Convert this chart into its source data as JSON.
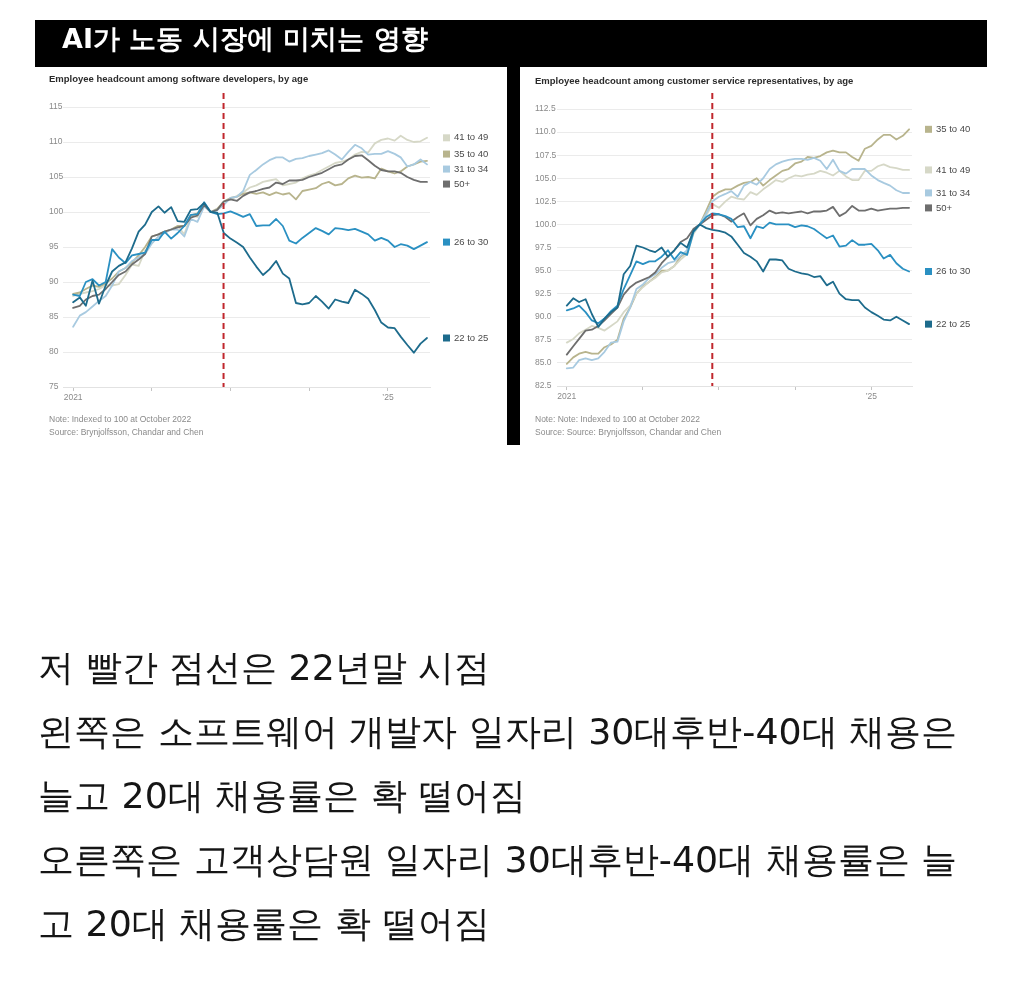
{
  "chart_data": [
    {
      "type": "other",
      "title": "AI가 노동 시장에 미치는 영향"
    },
    {
      "type": "line",
      "title": "Employee headcount among software developers, by age",
      "x": [
        "2021-01",
        "2021-02",
        "2021-03",
        "2021-04",
        "2021-05",
        "2021-06",
        "2021-07",
        "2021-08",
        "2021-09",
        "2021-10",
        "2021-11",
        "2021-12",
        "2022-01",
        "2022-02",
        "2022-03",
        "2022-04",
        "2022-05",
        "2022-06",
        "2022-07",
        "2022-08",
        "2022-09",
        "2022-10",
        "2022-11",
        "2022-12",
        "2023-01",
        "2023-02",
        "2023-03",
        "2023-04",
        "2023-05",
        "2023-06",
        "2023-07",
        "2023-08",
        "2023-09",
        "2023-10",
        "2023-11",
        "2023-12",
        "2024-01",
        "2024-02",
        "2024-03",
        "2024-04",
        "2024-05",
        "2024-06",
        "2024-07",
        "2024-08",
        "2024-09",
        "2024-10",
        "2024-11",
        "2024-12",
        "2025-01",
        "2025-02",
        "2025-03",
        "2025-04",
        "2025-05",
        "2025-06",
        "2025-07"
      ],
      "series": [
        {
          "name": "41 to 49",
          "color": "#d6d8c7",
          "values": [
            88.0,
            88.3,
            88.5,
            88.7,
            89.0,
            89.5,
            89.5,
            89.7,
            91.0,
            92.5,
            92.3,
            94.5,
            95.5,
            96.5,
            97.0,
            97.5,
            98.0,
            96.8,
            99.5,
            99.3,
            101.2,
            100,
            100.5,
            101.4,
            101.8,
            102.3,
            102.8,
            103.5,
            103.8,
            104.3,
            104.5,
            104.7,
            103.8,
            104.0,
            104.2,
            104.8,
            105.2,
            105.5,
            106.0,
            106.5,
            107.0,
            107.2,
            107.5,
            108.2,
            108.6,
            108.5,
            109.8,
            110.3,
            110.5,
            110.2,
            110.9,
            110.3,
            110.0,
            110.1,
            110.6
          ]
        },
        {
          "name": "35 to 40",
          "color": "#b8b48d",
          "values": [
            88.3,
            88.5,
            89.0,
            89.5,
            89.3,
            89.8,
            90.5,
            91.5,
            92.0,
            92.8,
            93.8,
            95.0,
            96.5,
            96.8,
            97.2,
            97.5,
            98.0,
            98.0,
            99.5,
            99.8,
            101.0,
            100,
            100.4,
            101.5,
            102.0,
            102.2,
            102.6,
            102.8,
            102.6,
            102.8,
            102.4,
            102.8,
            102.5,
            102.7,
            101.8,
            103.0,
            103.2,
            103.4,
            104.0,
            104.3,
            103.8,
            104.0,
            104.8,
            105.2,
            104.9,
            105.0,
            104.8,
            106.2,
            105.8,
            105.5,
            105.8,
            106.5,
            106.8,
            107.2,
            107.3
          ]
        },
        {
          "name": "31 to 34",
          "color": "#a8cae0",
          "values": [
            83.6,
            85.2,
            85.7,
            86.5,
            87.3,
            88.0,
            89.5,
            91.5,
            92.0,
            93.0,
            93.5,
            94.0,
            95.5,
            96.5,
            97.0,
            97.5,
            97.5,
            96.5,
            99.0,
            98.6,
            100.8,
            100,
            100.3,
            101.0,
            102.0,
            102.2,
            103.0,
            105.3,
            106.0,
            106.8,
            107.4,
            107.8,
            107.8,
            107.2,
            107.6,
            107.7,
            108.0,
            108.2,
            108.4,
            108.8,
            108.2,
            107.5,
            108.6,
            109.6,
            109.1,
            108.2,
            108.3,
            108.3,
            108.7,
            108.3,
            107.8,
            106.5,
            106.8,
            107.5,
            106.8
          ]
        },
        {
          "name": "50+",
          "color": "#6e6e6e",
          "values": [
            86.3,
            86.6,
            87.5,
            88.0,
            88.2,
            89.0,
            90.0,
            91.0,
            91.5,
            92.5,
            93.2,
            94.0,
            96.5,
            96.8,
            97.2,
            97.5,
            97.8,
            98.0,
            99.2,
            99.5,
            101.0,
            100,
            100.3,
            101.5,
            101.8,
            101.6,
            102.3,
            102.8,
            103.0,
            103.3,
            103.5,
            104.2,
            104.0,
            104.5,
            104.5,
            104.6,
            105.0,
            105.3,
            105.6,
            106.1,
            106.6,
            106.8,
            107.5,
            108.0,
            108.1,
            107.4,
            106.6,
            106.0,
            105.8,
            105.8,
            105.6,
            105.0,
            104.6,
            104.3,
            104.3
          ]
        },
        {
          "name": "26 to 30",
          "color": "#2a90c2",
          "values": [
            88.2,
            88.0,
            90.0,
            90.4,
            89.5,
            90.0,
            94.7,
            93.5,
            92.7,
            93.8,
            94.0,
            94.2,
            96.0,
            96.0,
            97.2,
            96.2,
            97.0,
            98.0,
            99.6,
            99.7,
            101.4,
            100,
            99.7,
            99.8,
            100.1,
            99.7,
            99.3,
            99.7,
            98.0,
            98.1,
            98.1,
            99.0,
            98.0,
            95.9,
            95.5,
            96.3,
            97.0,
            97.7,
            97.3,
            96.8,
            97.7,
            97.6,
            97.4,
            97.6,
            97.2,
            96.8,
            95.9,
            96.3,
            95.9,
            95.0,
            95.4,
            95.2,
            94.7,
            95.2,
            95.7
          ]
        },
        {
          "name": "22 to 25",
          "color": "#1d6b8c",
          "values": [
            87.1,
            87.8,
            86.6,
            90.2,
            86.9,
            89.5,
            91.5,
            92.3,
            92.8,
            94.8,
            97.2,
            98.2,
            100.0,
            100.8,
            99.9,
            100.7,
            98.7,
            98.6,
            100.3,
            100.4,
            101.3,
            100,
            99.9,
            97.0,
            96.2,
            95.6,
            95.0,
            93.5,
            92.2,
            91.0,
            91.8,
            93.0,
            91.2,
            90.5,
            87.0,
            86.8,
            87.0,
            88.0,
            87.2,
            86.2,
            87.5,
            87.2,
            87.0,
            88.9,
            88.3,
            87.6,
            86.0,
            84.2,
            83.5,
            83.4,
            82.2,
            81.0,
            79.9,
            81.2,
            82.0
          ]
        }
      ],
      "xlim": [
        "2020-11-15",
        "2025-07-15"
      ],
      "xticks": [
        {
          "value": "2021",
          "label": "2021"
        },
        {
          "value": "2022",
          "label": null
        },
        {
          "value": "2023",
          "label": null
        },
        {
          "value": "2024",
          "label": null
        },
        {
          "value": "2025",
          "label": "’25"
        }
      ],
      "ylim": [
        75,
        115
      ],
      "yticks": [
        75,
        80,
        85,
        90,
        95,
        100,
        105,
        110,
        115
      ],
      "grid": "y",
      "legend": "right",
      "ref_lines": [
        {
          "axis": "x",
          "value": "2022-11-30",
          "color": "#c0272d",
          "line_style": "dashed"
        }
      ],
      "annotations": [
        "Note: Indexed to 100 at October 2022",
        "Source: Brynjolfsson, Chandar and Chen"
      ]
    },
    {
      "type": "line",
      "title": "Employee headcount among customer service representatives, by age",
      "x": [
        "2021-01",
        "2021-02",
        "2021-03",
        "2021-04",
        "2021-05",
        "2021-06",
        "2021-07",
        "2021-08",
        "2021-09",
        "2021-10",
        "2021-11",
        "2021-12",
        "2022-01",
        "2022-02",
        "2022-03",
        "2022-04",
        "2022-05",
        "2022-06",
        "2022-07",
        "2022-08",
        "2022-09",
        "2022-10",
        "2022-11",
        "2022-12",
        "2023-01",
        "2023-02",
        "2023-03",
        "2023-04",
        "2023-05",
        "2023-06",
        "2023-07",
        "2023-08",
        "2023-09",
        "2023-10",
        "2023-11",
        "2023-12",
        "2024-01",
        "2024-02",
        "2024-03",
        "2024-04",
        "2024-05",
        "2024-06",
        "2024-07",
        "2024-08",
        "2024-09",
        "2024-10",
        "2024-11",
        "2024-12",
        "2025-01",
        "2025-02",
        "2025-03",
        "2025-04",
        "2025-05",
        "2025-06",
        "2025-07"
      ],
      "series": [
        {
          "name": "35 to 40",
          "color": "#b8b48d",
          "values": [
            84.9,
            85.6,
            86.0,
            86.2,
            86.0,
            86.0,
            86.7,
            87.0,
            87.5,
            89.8,
            91.0,
            92.5,
            93.3,
            93.8,
            94.3,
            95.0,
            95.0,
            95.5,
            96.5,
            97.0,
            99.5,
            100,
            101.5,
            103.0,
            103.5,
            103.8,
            103.8,
            104.2,
            104.5,
            104.6,
            105.0,
            104.2,
            104.8,
            105.3,
            105.8,
            106.0,
            106.6,
            106.8,
            107.3,
            107.2,
            107.4,
            107.8,
            108.0,
            107.8,
            107.8,
            107.3,
            106.9,
            108.2,
            108.5,
            109.2,
            109.7,
            109.7,
            109.2,
            109.6,
            110.3
          ]
        },
        {
          "name": "41 to 49",
          "color": "#d6d8c7",
          "values": [
            87.2,
            87.6,
            88.2,
            88.6,
            89.0,
            88.8,
            88.5,
            89.0,
            89.5,
            90.5,
            91.2,
            92.5,
            93.2,
            93.8,
            94.2,
            94.8,
            95.0,
            95.5,
            96.2,
            96.8,
            99.0,
            100,
            101.0,
            102.2,
            101.8,
            102.5,
            103.0,
            102.8,
            102.7,
            103.5,
            103.2,
            103.8,
            104.3,
            104.8,
            104.6,
            105.0,
            105.3,
            105.2,
            105.4,
            105.5,
            105.8,
            105.6,
            105.3,
            105.8,
            105.2,
            104.8,
            104.8,
            105.8,
            105.8,
            106.3,
            106.5,
            106.2,
            106.1,
            105.9,
            105.9
          ]
        },
        {
          "name": "31 to 34",
          "color": "#a8cae0",
          "values": [
            84.4,
            84.5,
            85.3,
            85.5,
            85.3,
            85.5,
            86.2,
            87.2,
            87.3,
            89.5,
            91.0,
            93.0,
            93.5,
            94.2,
            94.6,
            95.3,
            95.8,
            96.0,
            96.6,
            97.2,
            99.5,
            100,
            101.2,
            102.5,
            103.0,
            103.3,
            103.6,
            103.0,
            104.2,
            104.6,
            104.3,
            105.0,
            106.0,
            106.5,
            106.8,
            107.0,
            107.1,
            107.1,
            107.0,
            107.2,
            106.9,
            106.0,
            107.0,
            105.8,
            105.5,
            106.0,
            106.0,
            106.0,
            105.3,
            104.8,
            104.5,
            104.2,
            103.7,
            103.4,
            103.4
          ]
        },
        {
          "name": "50+",
          "color": "#6e6e6e",
          "values": [
            85.9,
            86.8,
            87.6,
            88.5,
            88.6,
            89.0,
            89.6,
            90.3,
            91.0,
            92.4,
            93.2,
            93.7,
            94.0,
            94.3,
            94.8,
            95.8,
            96.5,
            97.2,
            98.1,
            98.5,
            99.5,
            100,
            100.5,
            101.0,
            101.1,
            100.8,
            100.3,
            100.8,
            101.2,
            99.9,
            100.6,
            101.0,
            101.5,
            101.2,
            101.3,
            101.2,
            101.3,
            101.4,
            101.2,
            101.4,
            101.4,
            101.5,
            101.9,
            100.9,
            101.3,
            102.0,
            101.5,
            101.5,
            101.7,
            101.5,
            101.6,
            101.7,
            101.7,
            101.8,
            101.8
          ]
        },
        {
          "name": "26 to 30",
          "color": "#2a90c2",
          "values": [
            90.7,
            90.9,
            91.2,
            90.5,
            89.6,
            89.3,
            89.8,
            90.6,
            91.2,
            93.0,
            94.5,
            96.0,
            95.7,
            96.0,
            96.0,
            96.5,
            97.2,
            96.2,
            97.0,
            96.7,
            99.2,
            100,
            100.8,
            101.2,
            101.1,
            100.9,
            100.6,
            99.7,
            99.8,
            98.5,
            99.8,
            99.6,
            100.2,
            100.0,
            100.0,
            100.0,
            99.7,
            99.9,
            99.8,
            99.5,
            99.0,
            98.5,
            98.8,
            97.6,
            97.7,
            98.3,
            97.8,
            97.8,
            97.9,
            97.2,
            96.3,
            96.7,
            95.8,
            95.2,
            94.9
          ]
        },
        {
          "name": "22 to 25",
          "color": "#1d6b8c",
          "values": [
            91.2,
            92.0,
            91.6,
            91.9,
            90.3,
            88.9,
            89.8,
            90.5,
            91.0,
            94.6,
            95.5,
            97.7,
            97.5,
            97.2,
            97.0,
            97.5,
            96.5,
            97.2,
            98.0,
            97.5,
            99.3,
            100,
            99.6,
            99.4,
            99.3,
            99.1,
            98.7,
            97.8,
            96.9,
            96.5,
            96.0,
            94.9,
            96.2,
            96.2,
            96.1,
            95.2,
            94.9,
            94.7,
            94.6,
            94.3,
            94.4,
            93.4,
            93.8,
            92.5,
            91.9,
            91.8,
            91.8,
            91.0,
            90.5,
            90.1,
            89.7,
            89.6,
            90.0,
            89.6,
            89.2
          ]
        }
      ],
      "xlim": [
        "2020-11-15",
        "2025-07-15"
      ],
      "xticks": [
        {
          "value": "2021",
          "label": "2021"
        },
        {
          "value": "2022",
          "label": null
        },
        {
          "value": "2023",
          "label": null
        },
        {
          "value": "2024",
          "label": null
        },
        {
          "value": "2025",
          "label": "’25"
        }
      ],
      "ylim": [
        82.5,
        112.5
      ],
      "yticks": [
        82.5,
        {
          "value": 85,
          "label": "85.0"
        },
        87.5,
        {
          "value": 90,
          "label": "90.0"
        },
        92.5,
        {
          "value": 95,
          "label": "95.0"
        },
        97.5,
        {
          "value": 100,
          "label": "100.0"
        },
        102.5,
        {
          "value": 105,
          "label": "105.0"
        },
        107.5,
        {
          "value": 110,
          "label": "110.0"
        },
        112.5
      ],
      "grid": "y",
      "legend": "right",
      "ref_lines": [
        {
          "axis": "x",
          "value": "2022-11-30",
          "color": "#c0272d",
          "line_style": "dashed"
        }
      ],
      "annotations": [
        "Note: Note: Indexed to 100 at October 2022",
        "Source: Source: Brynjolfsson, Chandar and Chen"
      ]
    },
    {
      "type": "other",
      "annotations": [
        "저 빨간 점선은 22년말 시점",
        "왼쪽은 소프트웨어 개발자 일자리 30대후반-40대 채용은 늘고 20대 채용률은 확 떨어짐",
        "오른쪽은 고객상담원 일자리 30대후반-40대 채용률은 늘고 20대 채용률은 확 떨어짐"
      ]
    }
  ]
}
